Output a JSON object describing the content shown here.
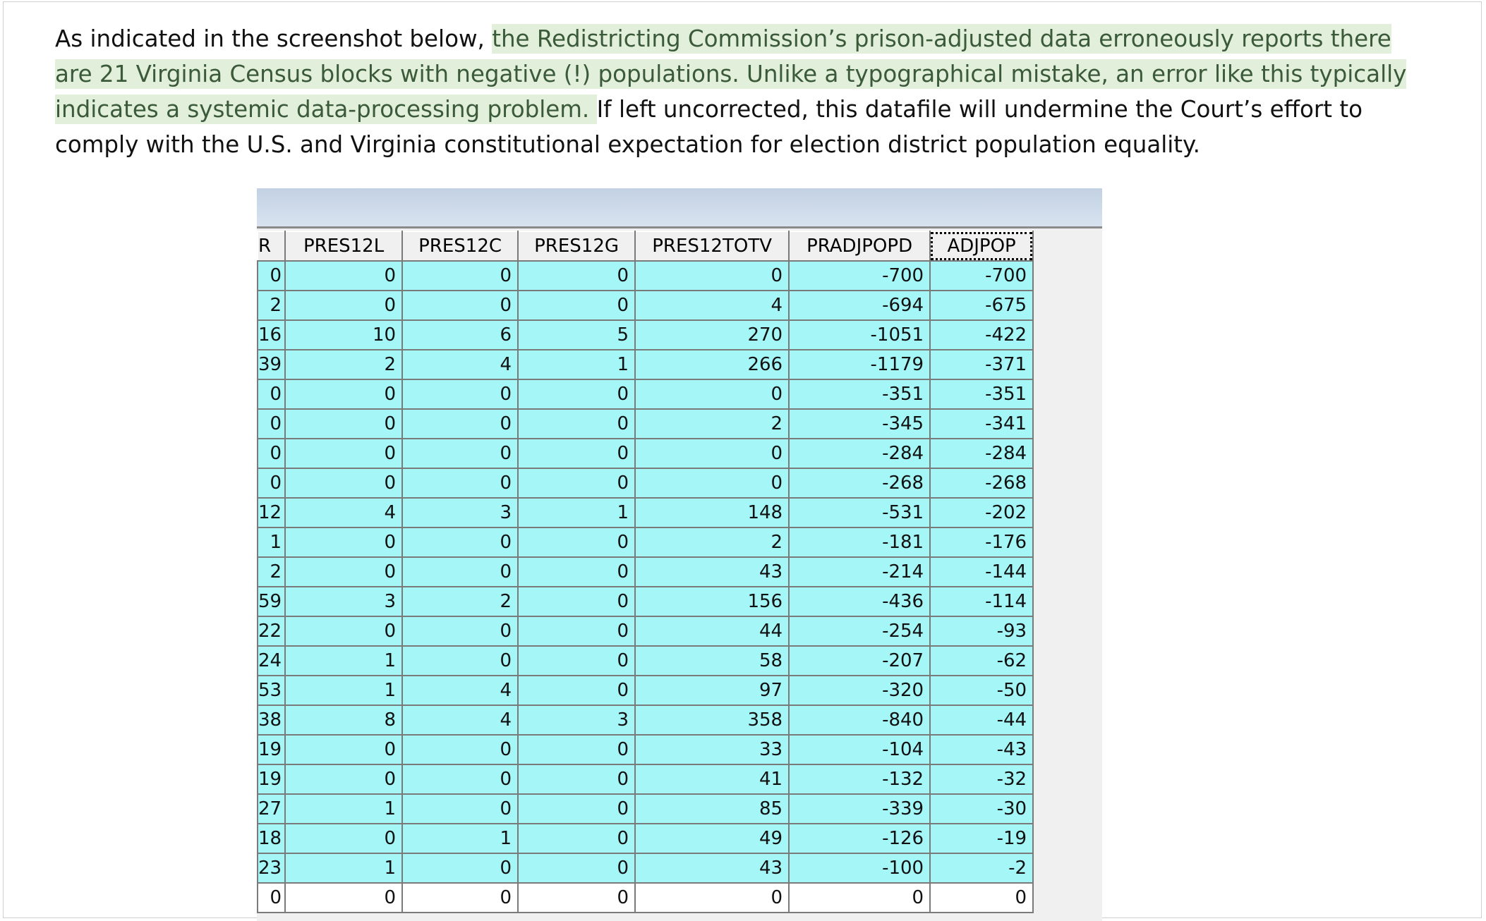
{
  "paragraph": {
    "lead": "As indicated in the screenshot below, ",
    "highlight": "the Redistricting Commission’s prison-adjusted data erroneously reports there are 21 Virginia Census blocks with negative (!) populations. Unlike a typographical mistake, an error like this typically indicates a systemic data-processing problem. ",
    "tail": " If left uncorrected, this datafile will undermine the Court’s effort to comply with the U.S. and Virginia constitutional expectation for election district population equality."
  },
  "colors": {
    "highlight_bg": "#e2efda",
    "cell_bg": "#a5f6f7"
  },
  "table": {
    "columns": [
      "R",
      "PRES12L",
      "PRES12C",
      "PRES12G",
      "PRES12TOTV",
      "PRADJPOPD",
      "ADJPOP"
    ],
    "active_column": "ADJPOP",
    "rows": [
      [
        "0",
        "0",
        "0",
        "0",
        "0",
        "-700",
        "-700"
      ],
      [
        "2",
        "0",
        "0",
        "0",
        "4",
        "-694",
        "-675"
      ],
      [
        "16",
        "10",
        "6",
        "5",
        "270",
        "-1051",
        "-422"
      ],
      [
        "39",
        "2",
        "4",
        "1",
        "266",
        "-1179",
        "-371"
      ],
      [
        "0",
        "0",
        "0",
        "0",
        "0",
        "-351",
        "-351"
      ],
      [
        "0",
        "0",
        "0",
        "0",
        "2",
        "-345",
        "-341"
      ],
      [
        "0",
        "0",
        "0",
        "0",
        "0",
        "-284",
        "-284"
      ],
      [
        "0",
        "0",
        "0",
        "0",
        "0",
        "-268",
        "-268"
      ],
      [
        "12",
        "4",
        "3",
        "1",
        "148",
        "-531",
        "-202"
      ],
      [
        "1",
        "0",
        "0",
        "0",
        "2",
        "-181",
        "-176"
      ],
      [
        "2",
        "0",
        "0",
        "0",
        "43",
        "-214",
        "-144"
      ],
      [
        "59",
        "3",
        "2",
        "0",
        "156",
        "-436",
        "-114"
      ],
      [
        "22",
        "0",
        "0",
        "0",
        "44",
        "-254",
        "-93"
      ],
      [
        "24",
        "1",
        "0",
        "0",
        "58",
        "-207",
        "-62"
      ],
      [
        "53",
        "1",
        "4",
        "0",
        "97",
        "-320",
        "-50"
      ],
      [
        "38",
        "8",
        "4",
        "3",
        "358",
        "-840",
        "-44"
      ],
      [
        "19",
        "0",
        "0",
        "0",
        "33",
        "-104",
        "-43"
      ],
      [
        "19",
        "0",
        "0",
        "0",
        "41",
        "-132",
        "-32"
      ],
      [
        "27",
        "1",
        "0",
        "0",
        "85",
        "-339",
        "-30"
      ],
      [
        "18",
        "0",
        "1",
        "0",
        "49",
        "-126",
        "-19"
      ],
      [
        "23",
        "1",
        "0",
        "0",
        "43",
        "-100",
        "-2"
      ],
      [
        "0",
        "0",
        "0",
        "0",
        "0",
        "0",
        "0"
      ]
    ]
  }
}
